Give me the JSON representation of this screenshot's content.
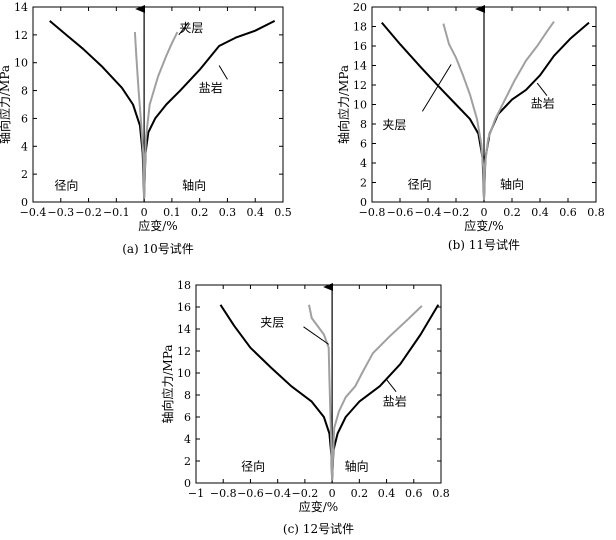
{
  "chart_data": [
    {
      "type": "line",
      "caption": "(a) 10号试件",
      "xlabel": "应变/%",
      "ylabel": "轴向应力/MPa",
      "xlim": [
        -0.4,
        0.5
      ],
      "ylim": [
        0,
        14
      ],
      "xticks": [
        -0.4,
        -0.3,
        -0.2,
        -0.1,
        0,
        0.1,
        0.2,
        0.3,
        0.4,
        0.5
      ],
      "xtick_labels": [
        "−0.4",
        "−0.3",
        "−0.2",
        "−0.1",
        "0",
        "0.1",
        "0.2",
        "0.3",
        "0.4",
        "0.5"
      ],
      "yticks": [
        0,
        2,
        4,
        6,
        8,
        10,
        12,
        14
      ],
      "ytick_labels": [
        "0",
        "2",
        "4",
        "6",
        "8",
        "10",
        "12",
        "14"
      ],
      "grid": false,
      "region_labels": [
        {
          "text": "径向",
          "x": -0.28,
          "y": 1.2
        },
        {
          "text": "轴向",
          "x": 0.18,
          "y": 1.2
        }
      ],
      "series": [
        {
          "name": "盐岩",
          "color": "#000000",
          "width": 2,
          "label": {
            "text": "盐岩",
            "x": 0.24,
            "y": 8.2
          },
          "leader": [
            [
              0.3,
              8.8
            ],
            [
              0.27,
              9.8
            ]
          ],
          "points": [
            [
              0.47,
              13.0
            ],
            [
              0.4,
              12.3
            ],
            [
              0.33,
              11.8
            ],
            [
              0.27,
              11.2
            ],
            [
              0.2,
              9.5
            ],
            [
              0.13,
              8.0
            ],
            [
              0.08,
              7.0
            ],
            [
              0.04,
              6.0
            ],
            [
              0.015,
              5.0
            ],
            [
              0.005,
              3.5
            ],
            [
              0,
              0.3
            ],
            [
              -0.005,
              3.5
            ],
            [
              -0.015,
              5.5
            ],
            [
              -0.04,
              7.0
            ],
            [
              -0.08,
              8.2
            ],
            [
              -0.15,
              9.7
            ],
            [
              -0.22,
              11.0
            ],
            [
              -0.28,
              12.0
            ],
            [
              -0.34,
              13.0
            ]
          ]
        },
        {
          "name": "夹层",
          "color": "#a0a0a0",
          "width": 2,
          "label": {
            "text": "夹层",
            "x": 0.17,
            "y": 12.5
          },
          "leader": [
            [
              0.16,
              12.9
            ],
            [
              0.125,
              12.0
            ]
          ],
          "points": [
            [
              0.12,
              12.2
            ],
            [
              0.1,
              11.4
            ],
            [
              0.08,
              10.5
            ],
            [
              0.05,
              9.0
            ],
            [
              0.02,
              7.0
            ],
            [
              0.006,
              4.5
            ],
            [
              0,
              0.3
            ],
            [
              -0.003,
              3.5
            ],
            [
              -0.01,
              5.5
            ],
            [
              -0.02,
              8.0
            ],
            [
              -0.028,
              10.5
            ],
            [
              -0.033,
              12.2
            ]
          ]
        }
      ]
    },
    {
      "type": "line",
      "caption": "(b) 11号试件",
      "xlabel": "应变/%",
      "ylabel": "轴向应力/MPa",
      "xlim": [
        -0.8,
        0.8
      ],
      "ylim": [
        0,
        20
      ],
      "xticks": [
        -0.8,
        -0.6,
        -0.4,
        -0.2,
        0,
        0.2,
        0.4,
        0.6,
        0.8
      ],
      "xtick_labels": [
        "−0.8",
        "−0.6",
        "−0.4",
        "−0.2",
        "0",
        "0.2",
        "0.4",
        "0.6",
        "0.8"
      ],
      "yticks": [
        0,
        2,
        4,
        6,
        8,
        10,
        12,
        14,
        16,
        18,
        20
      ],
      "ytick_labels": [
        "0",
        "2",
        "4",
        "6",
        "8",
        "10",
        "12",
        "14",
        "16",
        "18",
        "20"
      ],
      "grid": false,
      "region_labels": [
        {
          "text": "径向",
          "x": -0.46,
          "y": 1.8
        },
        {
          "text": "轴向",
          "x": 0.2,
          "y": 1.8
        }
      ],
      "series": [
        {
          "name": "盐岩",
          "color": "#000000",
          "width": 2,
          "label": {
            "text": "盐岩",
            "x": 0.42,
            "y": 10.1
          },
          "leader": [
            [
              0.45,
              10.9
            ],
            [
              0.38,
              12.2
            ]
          ],
          "points": [
            [
              0.75,
              18.4
            ],
            [
              0.62,
              16.8
            ],
            [
              0.5,
              15.0
            ],
            [
              0.4,
              13.0
            ],
            [
              0.3,
              11.5
            ],
            [
              0.2,
              10.5
            ],
            [
              0.1,
              9.0
            ],
            [
              0.04,
              7.0
            ],
            [
              0.01,
              4.5
            ],
            [
              0,
              0.3
            ],
            [
              -0.01,
              4.5
            ],
            [
              -0.04,
              7.0
            ],
            [
              -0.1,
              8.5
            ],
            [
              -0.2,
              10.0
            ],
            [
              -0.3,
              11.5
            ],
            [
              -0.45,
              13.8
            ],
            [
              -0.6,
              16.2
            ],
            [
              -0.73,
              18.4
            ]
          ]
        },
        {
          "name": "夹层",
          "color": "#a0a0a0",
          "width": 2,
          "label": {
            "text": "夹层",
            "x": -0.64,
            "y": 7.9
          },
          "leader": [
            [
              -0.44,
              9.3
            ],
            [
              -0.235,
              14.1
            ]
          ],
          "points": [
            [
              0.5,
              18.5
            ],
            [
              0.45,
              17.5
            ],
            [
              0.38,
              16.0
            ],
            [
              0.3,
              14.5
            ],
            [
              0.22,
              12.5
            ],
            [
              0.15,
              10.5
            ],
            [
              0.08,
              8.5
            ],
            [
              0.03,
              6.5
            ],
            [
              0.008,
              4.0
            ],
            [
              0,
              0.3
            ],
            [
              -0.005,
              3.5
            ],
            [
              -0.02,
              6.0
            ],
            [
              -0.05,
              8.5
            ],
            [
              -0.1,
              11.0
            ],
            [
              -0.15,
              13.0
            ],
            [
              -0.2,
              14.8
            ],
            [
              -0.25,
              16.2
            ],
            [
              -0.29,
              18.3
            ]
          ]
        }
      ]
    },
    {
      "type": "line",
      "caption": "(c) 12号试件",
      "xlabel": "应变/%",
      "ylabel": "轴向应力/MPa",
      "xlim": [
        -1.0,
        0.8
      ],
      "ylim": [
        0,
        18
      ],
      "xticks": [
        -1.0,
        -0.8,
        -0.6,
        -0.4,
        -0.2,
        0,
        0.2,
        0.4,
        0.6,
        0.8
      ],
      "xtick_labels": [
        "−1",
        "−0.8",
        "−0.6",
        "−0.4",
        "−0.2",
        "0",
        "0.2",
        "0.4",
        "0.6",
        "0.8"
      ],
      "yticks": [
        0,
        2,
        4,
        6,
        8,
        10,
        12,
        14,
        16,
        18
      ],
      "ytick_labels": [
        "0",
        "2",
        "4",
        "6",
        "8",
        "10",
        "12",
        "14",
        "16",
        "18"
      ],
      "grid": false,
      "region_labels": [
        {
          "text": "径向",
          "x": -0.58,
          "y": 1.5
        },
        {
          "text": "轴向",
          "x": 0.18,
          "y": 1.5
        }
      ],
      "series": [
        {
          "name": "盐岩",
          "color": "#000000",
          "width": 2,
          "label": {
            "text": "盐岩",
            "x": 0.46,
            "y": 7.4
          },
          "leader": [
            [
              0.47,
              8.3
            ],
            [
              0.4,
              9.4
            ]
          ],
          "points": [
            [
              0.78,
              16.2
            ],
            [
              0.65,
              13.5
            ],
            [
              0.5,
              10.8
            ],
            [
              0.35,
              8.8
            ],
            [
              0.2,
              7.4
            ],
            [
              0.1,
              6.0
            ],
            [
              0.04,
              4.5
            ],
            [
              0.01,
              3.0
            ],
            [
              0,
              0.3
            ],
            [
              -0.005,
              2.5
            ],
            [
              -0.02,
              4.5
            ],
            [
              -0.06,
              6.0
            ],
            [
              -0.15,
              7.4
            ],
            [
              -0.3,
              8.8
            ],
            [
              -0.45,
              10.5
            ],
            [
              -0.6,
              12.3
            ],
            [
              -0.72,
              14.3
            ],
            [
              -0.82,
              16.2
            ]
          ]
        },
        {
          "name": "夹层",
          "color": "#a0a0a0",
          "width": 2,
          "label": {
            "text": "夹层",
            "x": -0.44,
            "y": 14.6
          },
          "leader": [
            [
              -0.21,
              14.2
            ],
            [
              -0.025,
              12.6
            ]
          ],
          "points": [
            [
              0.66,
              16.1
            ],
            [
              0.55,
              14.8
            ],
            [
              0.42,
              13.3
            ],
            [
              0.3,
              11.8
            ],
            [
              0.22,
              10.0
            ],
            [
              0.17,
              8.8
            ],
            [
              0.1,
              7.8
            ],
            [
              0.05,
              6.5
            ],
            [
              0.015,
              5.0
            ],
            [
              0,
              0.3
            ],
            [
              -0.005,
              3.0
            ],
            [
              -0.012,
              6.0
            ],
            [
              -0.02,
              9.5
            ],
            [
              -0.025,
              12.3
            ],
            [
              -0.06,
              13.5
            ],
            [
              -0.12,
              14.5
            ],
            [
              -0.15,
              15.0
            ],
            [
              -0.17,
              16.2
            ]
          ]
        }
      ]
    }
  ]
}
